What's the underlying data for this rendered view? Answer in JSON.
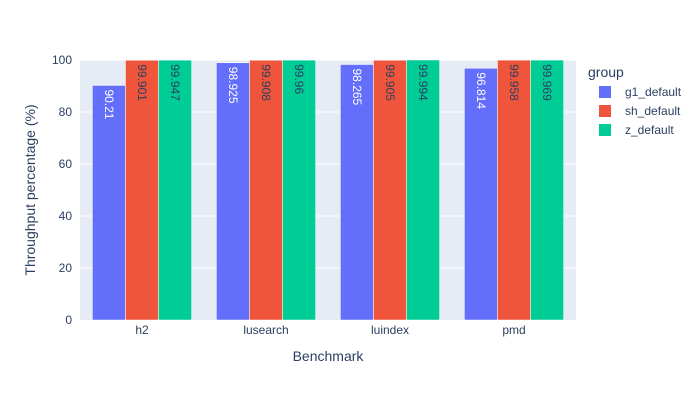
{
  "chart_data": {
    "type": "bar",
    "xlabel": "Benchmark",
    "ylabel": "Throughput percentage (%)",
    "categories": [
      "h2",
      "lusearch",
      "luindex",
      "pmd"
    ],
    "ylim": [
      0,
      100
    ],
    "yticks": [
      0,
      20,
      40,
      60,
      80,
      100
    ],
    "grid": true,
    "legend_title": "group",
    "legend_position": "right",
    "series": [
      {
        "name": "g1_default",
        "color": "#636efa",
        "label_color": "#ffffff",
        "values": [
          90.21,
          98.925,
          98.265,
          96.814
        ],
        "labels": [
          "90.21",
          "98.925",
          "98.265",
          "96.814"
        ]
      },
      {
        "name": "sh_default",
        "color": "#ef553b",
        "label_color": "#2a3f5f",
        "values": [
          99.901,
          99.908,
          99.905,
          99.958
        ],
        "labels": [
          "99.901",
          "99.908",
          "99.905",
          "99.958"
        ]
      },
      {
        "name": "z_default",
        "color": "#00cc96",
        "label_color": "#2a3f5f",
        "values": [
          99.947,
          99.96,
          99.994,
          99.969
        ],
        "labels": [
          "99.947",
          "99.96",
          "99.994",
          "99.969"
        ]
      }
    ],
    "colors": {
      "plot_bg": "#e5ecf6",
      "grid": "#ffffff",
      "text": "#2a3f5f"
    }
  }
}
